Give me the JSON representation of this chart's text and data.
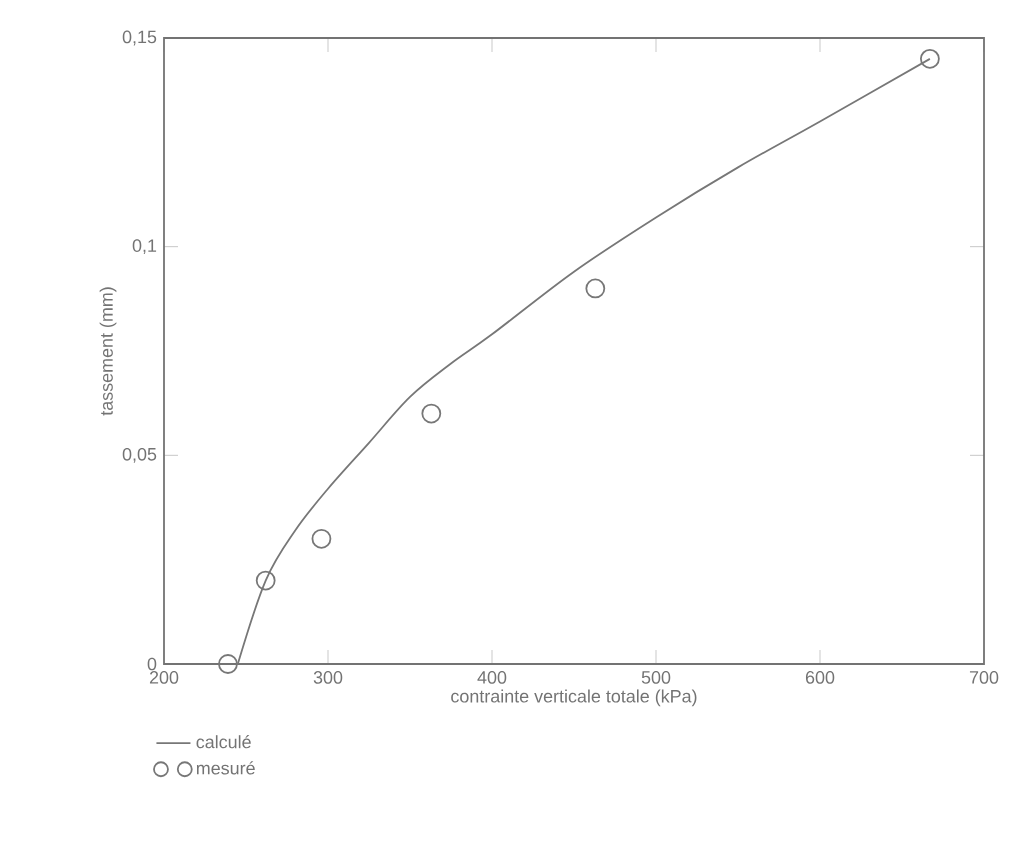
{
  "chart_data": {
    "type": "line",
    "xlabel": "contrainte verticale totale (kPa)",
    "ylabel": "tassement (mm)",
    "xlim": [
      200,
      700
    ],
    "ylim": [
      0,
      0.15
    ],
    "xticks": [
      200,
      300,
      400,
      500,
      600,
      700
    ],
    "yticks": [
      0,
      {
        "value": 0.05,
        "label": "0,05"
      },
      {
        "value": 0.1,
        "label": "0,1"
      },
      {
        "value": 0.15,
        "label": "0,15"
      }
    ],
    "legend": "bottom",
    "grid": false,
    "series": [
      {
        "name": "calculé",
        "color": "#777777",
        "marker": "none",
        "line_style": "solid",
        "x": [
          245,
          262,
          280,
          300,
          325,
          350,
          375,
          400,
          450,
          500,
          550,
          600,
          667
        ],
        "values": [
          0,
          0.02,
          0.032,
          0.042,
          0.053,
          0.064,
          0.072,
          0.079,
          0.094,
          0.107,
          0.119,
          0.13,
          0.145
        ]
      },
      {
        "name": "mesuré",
        "type": "scatter",
        "color": "#777777",
        "marker": "circle",
        "x": [
          239,
          262,
          296,
          363,
          463,
          667
        ],
        "values": [
          0,
          0.02,
          0.03,
          0.06,
          0.09,
          0.145
        ]
      }
    ]
  }
}
